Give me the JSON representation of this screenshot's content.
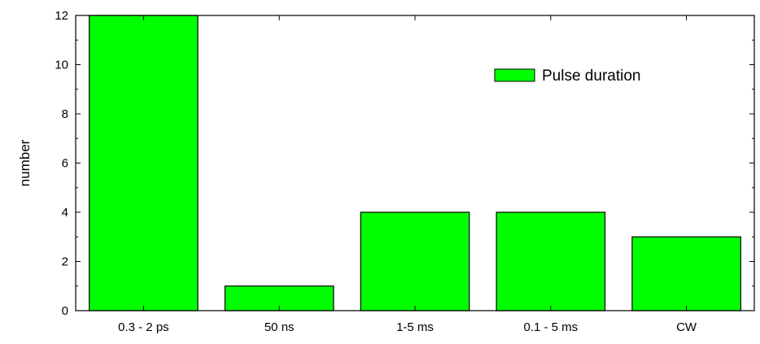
{
  "chart_data": {
    "type": "bar",
    "categories": [
      "0.3 - 2 ps",
      "50 ns",
      "1-5 ms",
      "0.1 - 5 ms",
      "CW"
    ],
    "series": [
      {
        "name": "Pulse duration",
        "values": [
          12,
          1,
          4,
          4,
          3
        ]
      }
    ],
    "xlabel": "",
    "ylabel": "number",
    "ylim": [
      0,
      12
    ],
    "yticks": [
      0,
      2,
      4,
      6,
      8,
      10,
      12
    ],
    "grid": false,
    "legend": "top-right",
    "bar_color": "#00ff00",
    "edge_color": "#000000"
  }
}
